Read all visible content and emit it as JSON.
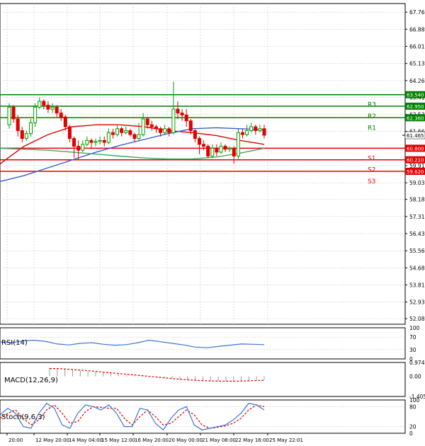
{
  "colors": {
    "up": "#00a000",
    "down": "#e00000",
    "grid": "#c8c8c8",
    "axis": "#000000",
    "resistance": "#008000",
    "support": "#e00000",
    "ma_red": "#e00000",
    "ma_blue": "#3b5bd6",
    "ma_green": "#3aa860",
    "rsi": "#3a74d6",
    "macd_hist": "#999999",
    "macd_signal": "#e00000",
    "stoch_main": "#3a74d6",
    "stoch_signal": "#e00000"
  },
  "chart_data": {
    "type": "candlestick",
    "price_ticks": [
      "67.760",
      "66.885",
      "66.010",
      "65.135",
      "64.260",
      "63.410",
      "62.535",
      "61.660",
      "60.785",
      "59.910",
      "59.035",
      "58.185",
      "57.310",
      "56.435",
      "55.560",
      "54.685",
      "53.810",
      "52.935",
      "52.085"
    ],
    "price_range": [
      51.8,
      68.2
    ],
    "last_price": "61.465",
    "x_labels": [
      "20:00",
      "12 May 20:00",
      "14 May 04:00",
      "15 May 12:00",
      "16 May 20:00",
      "20 May 00:00",
      "21 May 08:00",
      "22 May 16:00",
      "25 May 22:01"
    ],
    "levels": [
      {
        "name": "R3",
        "value": 63.54,
        "label": "63.540",
        "kind": "resistance"
      },
      {
        "name": "R2",
        "value": 62.95,
        "label": "62.950",
        "kind": "resistance"
      },
      {
        "name": "R1",
        "value": 62.36,
        "label": "62.360",
        "kind": "resistance"
      },
      {
        "name": "S1",
        "value": 60.8,
        "label": "60.800",
        "kind": "support"
      },
      {
        "name": "S2",
        "value": 60.21,
        "label": "60.210",
        "kind": "support"
      },
      {
        "name": "S3",
        "value": 59.62,
        "label": "59.620",
        "kind": "support"
      }
    ],
    "candles": [
      [
        62.0,
        62.9,
        63.1,
        61.8
      ],
      [
        62.9,
        62.3,
        63.0,
        62.1
      ],
      [
        62.3,
        61.7,
        62.5,
        61.4
      ],
      [
        61.7,
        61.3,
        61.9,
        61.1
      ],
      [
        61.3,
        61.55,
        61.7,
        61.2
      ],
      [
        61.55,
        62.1,
        62.3,
        61.4
      ],
      [
        62.1,
        62.9,
        63.1,
        61.9
      ],
      [
        62.9,
        63.2,
        63.4,
        62.8
      ],
      [
        63.2,
        63.0,
        63.3,
        62.8
      ],
      [
        63.0,
        62.8,
        63.2,
        62.6
      ],
      [
        62.8,
        62.9,
        63.1,
        62.6
      ],
      [
        62.9,
        62.6,
        63.0,
        62.4
      ],
      [
        62.6,
        62.4,
        62.8,
        62.2
      ],
      [
        62.4,
        61.9,
        62.5,
        61.7
      ],
      [
        61.9,
        61.3,
        62.0,
        61.1
      ],
      [
        61.3,
        60.9,
        61.4,
        60.3
      ],
      [
        60.9,
        60.7,
        61.2,
        60.2
      ],
      [
        60.7,
        61.0,
        61.2,
        60.6
      ],
      [
        61.0,
        61.2,
        61.4,
        60.9
      ],
      [
        61.2,
        61.1,
        61.3,
        60.8
      ],
      [
        61.1,
        61.15,
        61.3,
        60.9
      ],
      [
        61.15,
        61.2,
        61.4,
        61.0
      ],
      [
        61.2,
        61.1,
        61.4,
        60.9
      ],
      [
        61.1,
        61.6,
        61.8,
        61.0
      ],
      [
        61.6,
        61.5,
        61.8,
        61.3
      ],
      [
        61.5,
        61.8,
        62.0,
        61.4
      ],
      [
        61.8,
        61.6,
        61.9,
        61.4
      ],
      [
        61.6,
        61.7,
        61.9,
        61.5
      ],
      [
        61.7,
        61.5,
        61.8,
        61.4
      ],
      [
        61.5,
        61.3,
        61.6,
        61.1
      ],
      [
        61.3,
        61.5,
        62.1,
        61.2
      ],
      [
        61.5,
        62.3,
        62.6,
        61.4
      ],
      [
        62.3,
        62.0,
        62.4,
        61.8
      ],
      [
        62.0,
        61.9,
        62.2,
        61.7
      ],
      [
        61.9,
        61.8,
        62.0,
        61.6
      ],
      [
        61.8,
        61.6,
        61.9,
        61.4
      ],
      [
        61.6,
        61.8,
        62.0,
        61.5
      ],
      [
        61.8,
        61.6,
        61.9,
        61.4
      ],
      [
        61.6,
        62.8,
        64.2,
        61.5
      ],
      [
        62.8,
        62.6,
        63.2,
        62.3
      ],
      [
        62.6,
        62.5,
        62.8,
        62.2
      ],
      [
        62.5,
        62.2,
        62.8,
        61.9
      ],
      [
        62.2,
        61.7,
        62.3,
        61.5
      ],
      [
        61.7,
        61.3,
        61.8,
        61.1
      ],
      [
        61.3,
        61.0,
        61.4,
        60.5
      ],
      [
        61.0,
        60.9,
        61.2,
        60.7
      ],
      [
        60.9,
        60.4,
        61.0,
        60.3
      ],
      [
        60.4,
        60.8,
        61.0,
        60.3
      ],
      [
        60.8,
        60.6,
        61.0,
        60.4
      ],
      [
        60.6,
        60.9,
        61.1,
        60.5
      ],
      [
        60.9,
        60.75,
        61.0,
        60.6
      ],
      [
        60.75,
        60.8,
        60.9,
        60.6
      ],
      [
        60.8,
        60.4,
        60.9,
        60.0
      ],
      [
        60.4,
        61.6,
        61.8,
        60.2
      ],
      [
        61.6,
        61.5,
        61.8,
        61.3
      ],
      [
        61.5,
        61.7,
        62.0,
        61.4
      ],
      [
        61.7,
        61.9,
        62.1,
        61.6
      ],
      [
        61.9,
        61.7,
        62.0,
        61.5
      ],
      [
        61.7,
        61.8,
        62.0,
        61.6
      ],
      [
        61.8,
        61.465,
        62.0,
        61.3
      ]
    ],
    "moving_averages": [
      {
        "color": "#e00000",
        "values": [
          60.0,
          60.9,
          61.5,
          61.9,
          62.0,
          62.0,
          61.9,
          61.7,
          61.6,
          61.45,
          61.2,
          61.0
        ]
      },
      {
        "color": "#3b5bd6",
        "values": [
          59.1,
          59.4,
          59.8,
          60.2,
          60.6,
          60.95,
          61.25,
          61.55,
          61.8,
          61.85,
          61.8,
          61.75
        ]
      },
      {
        "color": "#3aa860",
        "values": [
          60.8,
          60.75,
          60.7,
          60.6,
          60.5,
          60.4,
          60.3,
          60.25,
          60.25,
          60.35,
          60.55,
          60.8
        ]
      }
    ],
    "rsi": {
      "label": "RSI(14)",
      "ticks": [
        "100",
        "70",
        "30",
        "0"
      ],
      "values": [
        55,
        52,
        58,
        60,
        56,
        48,
        45,
        50,
        52,
        47,
        44,
        46,
        52,
        60,
        55,
        50,
        45,
        38,
        36,
        40,
        44,
        48,
        47,
        46
      ]
    },
    "macd": {
      "label": "MACD(12,26,9)",
      "ticks": [
        "0.9741",
        "0.00",
        "-1.4051"
      ],
      "range": [
        -1.4051,
        0.9741
      ],
      "histogram": [
        0.6,
        0.55,
        0.5,
        0.45,
        0.4,
        0.35,
        0.3,
        0.25,
        0.2,
        0.15,
        0.1,
        0.05,
        0.02,
        0.0,
        -0.05,
        -0.1,
        -0.15,
        -0.2,
        -0.25,
        -0.28,
        -0.3,
        -0.32,
        -0.33,
        -0.33,
        -0.32,
        -0.3,
        -0.28,
        -0.25,
        -0.22
      ],
      "signal": [
        0.55,
        0.55,
        0.52,
        0.48,
        0.44,
        0.4,
        0.35,
        0.3,
        0.25,
        0.2,
        0.15,
        0.1,
        0.05,
        0.0,
        -0.05,
        -0.1,
        -0.15,
        -0.2,
        -0.24,
        -0.27,
        -0.3,
        -0.32,
        -0.33,
        -0.34,
        -0.34,
        -0.33,
        -0.31,
        -0.29,
        -0.27
      ]
    },
    "stoch": {
      "label": "Stoch(9,6,3)",
      "ticks": [
        "100",
        "80",
        "20",
        "0"
      ],
      "main": [
        55,
        75,
        60,
        20,
        15,
        60,
        90,
        75,
        25,
        15,
        60,
        85,
        80,
        70,
        85,
        60,
        20,
        20,
        75,
        70,
        30,
        10,
        45,
        70,
        80,
        25,
        10,
        15,
        20,
        25,
        40,
        60,
        90,
        85,
        70
      ],
      "signal": [
        45,
        60,
        70,
        45,
        25,
        40,
        70,
        85,
        60,
        30,
        35,
        65,
        80,
        78,
        75,
        75,
        45,
        25,
        50,
        70,
        50,
        25,
        30,
        50,
        70,
        55,
        25,
        15,
        18,
        22,
        30,
        45,
        70,
        85,
        80
      ]
    }
  }
}
